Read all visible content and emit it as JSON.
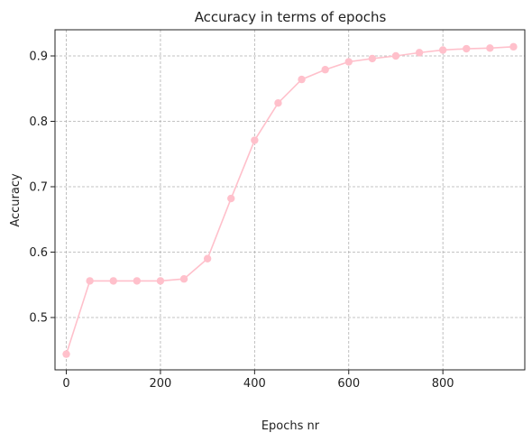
{
  "chart_data": {
    "type": "line",
    "title": "Accuracy in terms of epochs",
    "xlabel": "Epochs nr",
    "ylabel": "Accuracy",
    "xlim": [
      -24,
      974
    ],
    "ylim": [
      0.42,
      0.94
    ],
    "xticks": [
      0,
      200,
      400,
      600,
      800
    ],
    "yticks": [
      0.5,
      0.6,
      0.7,
      0.8,
      0.9
    ],
    "xtick_labels": [
      "0",
      "200",
      "400",
      "600",
      "800"
    ],
    "ytick_labels": [
      "0.5",
      "0.6",
      "0.7",
      "0.8",
      "0.9"
    ],
    "grid": true,
    "series": [
      {
        "color": "#ffc0cb",
        "marker": "circle",
        "x": [
          0,
          50,
          100,
          150,
          200,
          250,
          300,
          350,
          400,
          450,
          500,
          550,
          600,
          650,
          700,
          750,
          800,
          850,
          900,
          950
        ],
        "y": [
          0.444,
          0.556,
          0.556,
          0.556,
          0.556,
          0.559,
          0.59,
          0.682,
          0.771,
          0.828,
          0.864,
          0.879,
          0.891,
          0.896,
          0.9,
          0.905,
          0.909,
          0.911,
          0.912,
          0.914
        ]
      }
    ]
  }
}
